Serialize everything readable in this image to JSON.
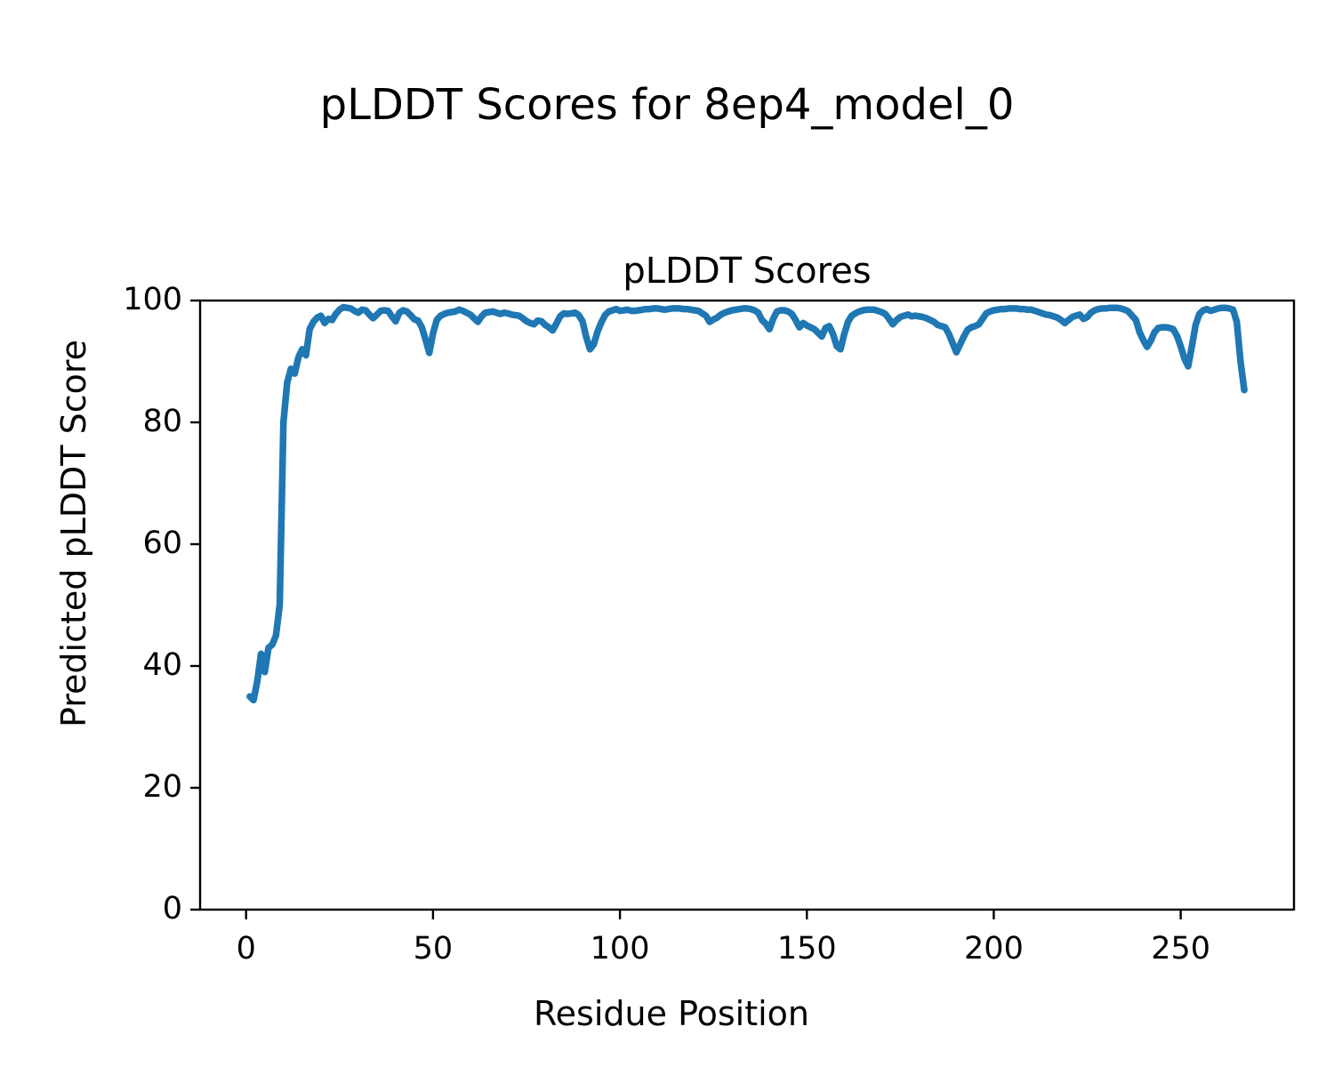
{
  "figure": {
    "suptitle": "pLDDT Scores for 8ep4_model_0"
  },
  "chart_data": {
    "type": "line",
    "title": "pLDDT Scores",
    "xlabel": "Residue Position",
    "ylabel": "Predicted pLDDT Score",
    "xlim": [
      -12.3,
      280.3
    ],
    "ylim": [
      0,
      100
    ],
    "xticks": [
      0,
      50,
      100,
      150,
      200,
      250
    ],
    "yticks": [
      0,
      20,
      40,
      60,
      80,
      100
    ],
    "grid": false,
    "legend": "none",
    "line_color": "#1f77b4",
    "axis_color": "#000000",
    "series": [
      {
        "name": "pLDDT",
        "x_first": 1,
        "x_step": 1,
        "x_last": 267,
        "y": [
          35.0,
          34.4,
          37.5,
          42.0,
          39.0,
          43.0,
          43.5,
          45.0,
          50.0,
          80.0,
          86.5,
          88.8,
          88.0,
          90.7,
          92.0,
          91.0,
          95.3,
          96.5,
          97.2,
          97.5,
          96.3,
          97.0,
          96.8,
          97.8,
          98.5,
          98.9,
          98.8,
          98.7,
          98.3,
          98.0,
          98.5,
          98.4,
          97.7,
          97.1,
          97.7,
          98.3,
          98.4,
          98.3,
          97.4,
          96.6,
          98.0,
          98.4,
          98.2,
          97.6,
          96.9,
          96.7,
          95.6,
          93.6,
          91.4,
          94.6,
          96.8,
          97.5,
          97.8,
          98.0,
          98.1,
          98.2,
          98.5,
          98.3,
          98.0,
          97.7,
          97.1,
          96.5,
          97.4,
          98.0,
          98.1,
          98.2,
          98.0,
          97.8,
          98.0,
          97.9,
          97.7,
          97.6,
          97.5,
          97.1,
          96.6,
          96.3,
          96.1,
          96.7,
          96.6,
          96.0,
          95.6,
          95.1,
          96.2,
          97.4,
          97.9,
          97.8,
          97.9,
          98.0,
          97.6,
          96.6,
          94.0,
          92.0,
          92.8,
          94.9,
          96.4,
          97.6,
          98.2,
          98.4,
          98.6,
          98.3,
          98.4,
          98.5,
          98.3,
          98.3,
          98.4,
          98.5,
          98.6,
          98.6,
          98.7,
          98.7,
          98.6,
          98.5,
          98.6,
          98.7,
          98.7,
          98.7,
          98.6,
          98.6,
          98.5,
          98.4,
          98.3,
          97.9,
          97.5,
          96.5,
          96.9,
          97.2,
          97.7,
          98.0,
          98.2,
          98.4,
          98.5,
          98.6,
          98.7,
          98.7,
          98.6,
          98.4,
          98.0,
          96.8,
          96.2,
          95.3,
          97.0,
          98.2,
          98.4,
          98.4,
          98.2,
          97.8,
          96.8,
          95.6,
          96.3,
          95.9,
          95.6,
          95.3,
          94.7,
          94.1,
          95.5,
          95.8,
          94.5,
          92.5,
          92.0,
          94.5,
          96.5,
          97.5,
          97.9,
          98.2,
          98.4,
          98.5,
          98.5,
          98.5,
          98.3,
          98.1,
          97.8,
          97.0,
          96.1,
          96.8,
          97.3,
          97.5,
          97.7,
          97.4,
          97.5,
          97.4,
          97.3,
          97.1,
          96.8,
          96.5,
          96.0,
          95.8,
          95.6,
          94.5,
          93.0,
          91.5,
          92.8,
          94.1,
          95.2,
          95.6,
          95.8,
          96.1,
          97.0,
          97.9,
          98.2,
          98.4,
          98.5,
          98.6,
          98.6,
          98.7,
          98.7,
          98.7,
          98.6,
          98.6,
          98.5,
          98.5,
          98.3,
          98.1,
          97.9,
          97.7,
          97.6,
          97.4,
          97.2,
          96.8,
          96.3,
          96.8,
          97.3,
          97.5,
          97.7,
          97.0,
          97.3,
          98.0,
          98.4,
          98.6,
          98.7,
          98.7,
          98.8,
          98.8,
          98.8,
          98.7,
          98.5,
          98.2,
          97.5,
          96.8,
          94.8,
          93.5,
          92.4,
          93.4,
          94.8,
          95.5,
          95.6,
          95.6,
          95.5,
          95.3,
          94.2,
          92.5,
          90.5,
          89.2,
          92.5,
          96.0,
          97.8,
          98.4,
          98.6,
          98.3,
          98.5,
          98.7,
          98.8,
          98.8,
          98.7,
          98.5,
          96.5,
          90.0,
          85.3
        ]
      }
    ]
  }
}
